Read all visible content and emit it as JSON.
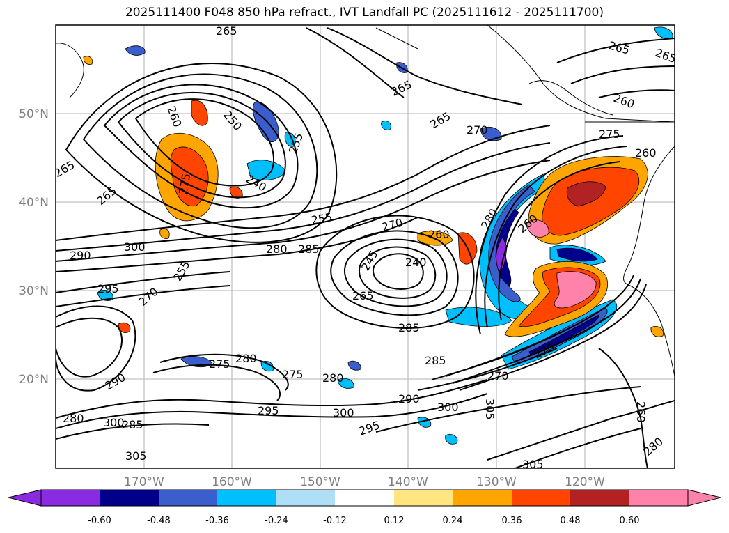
{
  "title": "2025111400 F048 850 hPa refract., IVT Landfall PC (2025111612 - 2025111700)",
  "lat_labels": [
    "50°N",
    "40°N",
    "30°N",
    "20°N"
  ],
  "lon_labels": [
    "170°W",
    "160°W",
    "150°W",
    "140°W",
    "130°W",
    "120°W"
  ],
  "colorbar": {
    "segments": [
      "#8a2be2",
      "#00008b",
      "#3a5fcd",
      "#00bfff",
      "#aedff7",
      "#ffffff",
      "#ffe680",
      "#ffa500",
      "#ff4500",
      "#b22222",
      "#ff82ab"
    ],
    "labels": [
      "-0.60",
      "-0.48",
      "-0.36",
      "-0.24",
      "-0.12",
      "0.12",
      "0.24",
      "0.36",
      "0.48",
      "0.60"
    ]
  },
  "contour_labels": [
    "265",
    "250",
    "260",
    "255",
    "240",
    "265",
    "265",
    "270",
    "265",
    "260",
    "265",
    "275",
    "260",
    "265",
    "265",
    "275",
    "290",
    "300",
    "280",
    "285",
    "270",
    "255",
    "260",
    "280",
    "260",
    "240",
    "245",
    "265",
    "285",
    "285",
    "295",
    "270",
    "275",
    "280",
    "290",
    "300",
    "295",
    "280",
    "285",
    "290",
    "300",
    "305",
    "295",
    "270",
    "280",
    "275",
    "255",
    "260",
    "300",
    "305",
    "305",
    "270",
    "280"
  ]
}
